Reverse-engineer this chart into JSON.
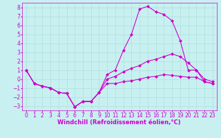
{
  "xlabel": "Windchill (Refroidissement éolien,°C)",
  "background_color": "#c8f0f0",
  "line_color": "#cc00cc",
  "grid_color": "#b0dede",
  "xlim": [
    -0.5,
    23.5
  ],
  "ylim": [
    -3.5,
    8.5
  ],
  "xticks": [
    0,
    1,
    2,
    3,
    4,
    5,
    6,
    7,
    8,
    9,
    10,
    11,
    12,
    13,
    14,
    15,
    16,
    17,
    18,
    19,
    20,
    21,
    22,
    23
  ],
  "yticks": [
    -3,
    -2,
    -1,
    0,
    1,
    2,
    3,
    4,
    5,
    6,
    7,
    8
  ],
  "line_max": [
    1.0,
    -0.5,
    -0.8,
    -1.0,
    -1.5,
    -1.6,
    -3.1,
    -2.5,
    -2.5,
    -1.5,
    0.5,
    1.0,
    3.2,
    5.0,
    7.8,
    8.1,
    7.5,
    7.2,
    6.5,
    4.3,
    1.0,
    1.0,
    -0.3,
    -0.5
  ],
  "line_mean": [
    1.0,
    -0.5,
    -0.8,
    -1.0,
    -1.5,
    -1.6,
    -3.1,
    -2.5,
    -2.5,
    -1.5,
    0.0,
    0.3,
    0.8,
    1.2,
    1.5,
    2.0,
    2.2,
    2.5,
    2.8,
    2.5,
    1.8,
    1.0,
    0.0,
    -0.3
  ],
  "line_min": [
    1.0,
    -0.5,
    -0.8,
    -1.0,
    -1.5,
    -1.6,
    -3.1,
    -2.5,
    -2.5,
    -1.5,
    -0.5,
    -0.5,
    -0.3,
    -0.2,
    0.0,
    0.2,
    0.3,
    0.5,
    0.4,
    0.3,
    0.2,
    0.2,
    -0.3,
    -0.5
  ],
  "marker": "D",
  "markersize": 2,
  "linewidth": 0.8,
  "fontsize_xlabel": 6,
  "fontsize_ticks": 5.5
}
